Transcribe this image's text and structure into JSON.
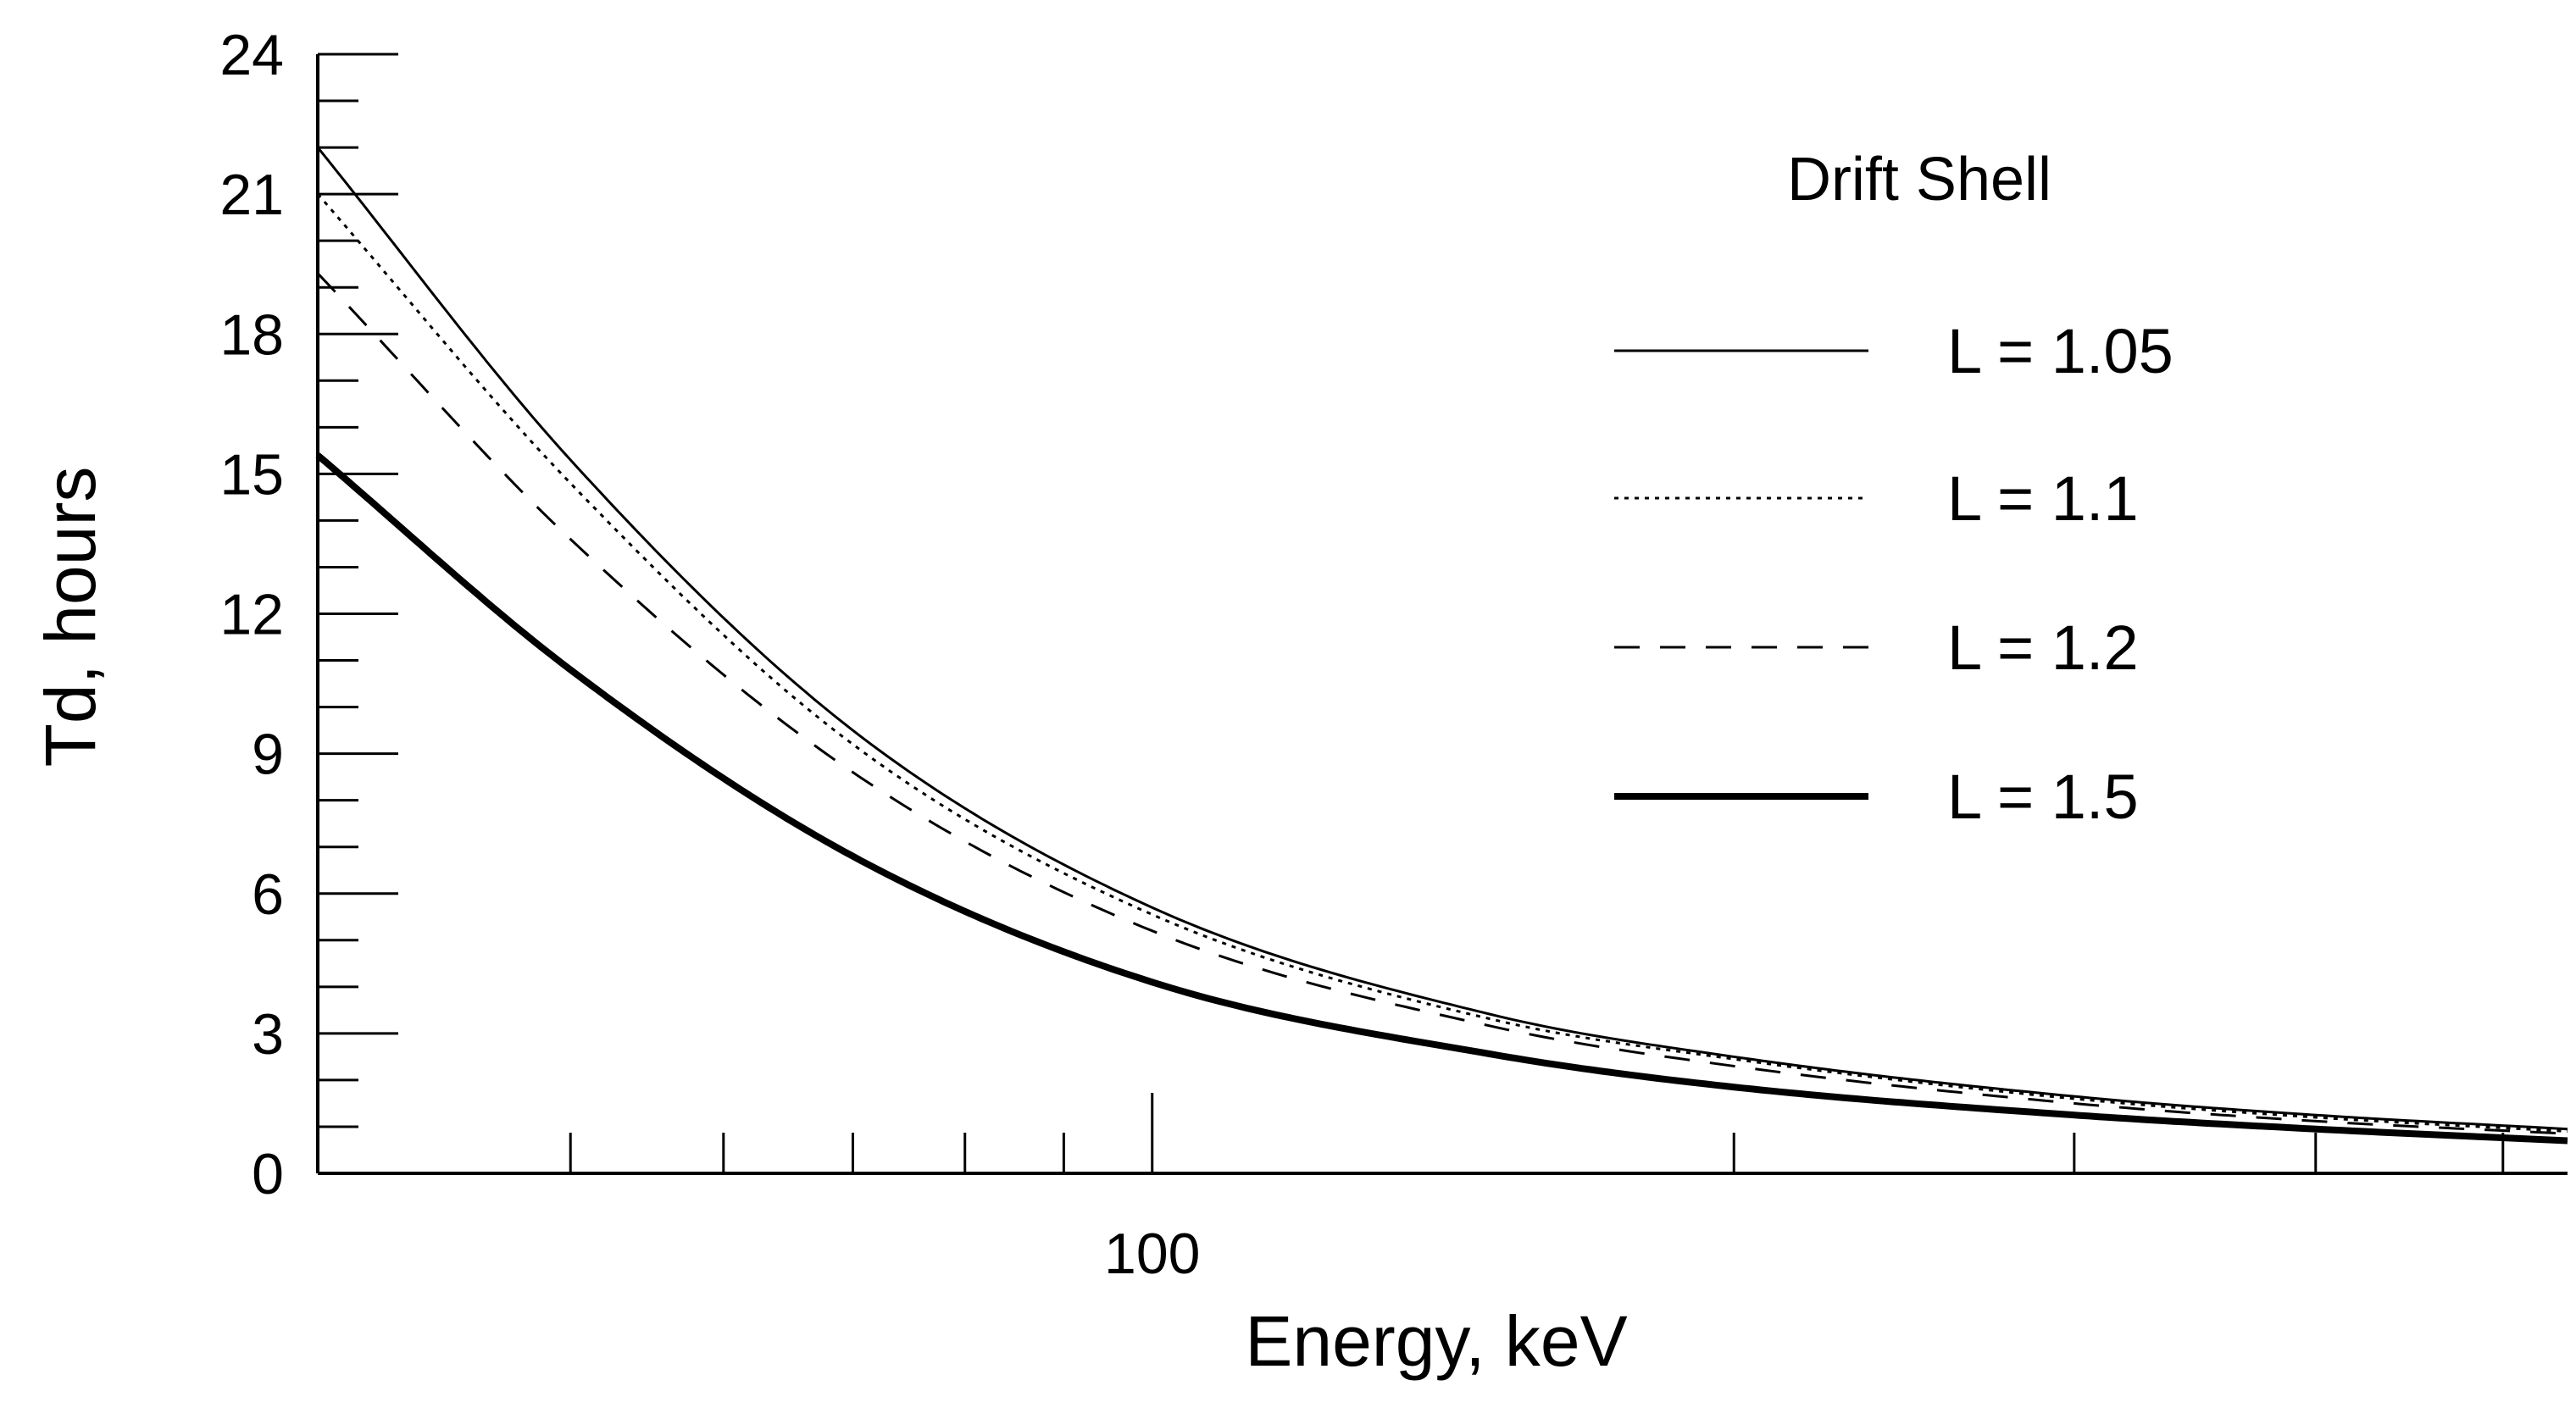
{
  "chart_data": {
    "type": "line",
    "title": "",
    "xlabel": "Energy, keV",
    "ylabel": "Td, hours",
    "x_scale": "log",
    "xlim": [
      37,
      540
    ],
    "ylim": [
      0,
      24
    ],
    "grid": false,
    "x_major_ticks": [
      100
    ],
    "x_minor_ticks": [
      50,
      60,
      70,
      80,
      90,
      200,
      300,
      400,
      500
    ],
    "x_tick_labels": [
      "100"
    ],
    "y_ticks": [
      0,
      3,
      6,
      9,
      12,
      15,
      18,
      21,
      24
    ],
    "y_tick_labels": [
      "0",
      "3",
      "6",
      "9",
      "12",
      "15",
      "18",
      "21",
      "24"
    ],
    "y_minor_step": 1,
    "legend": {
      "title": "Drift Shell",
      "placement": "top-right"
    },
    "series": [
      {
        "name": "L = 1.05",
        "style": "thin-solid",
        "x": [
          37,
          50,
          70,
          100,
          150,
          200,
          300,
          400,
          540
        ],
        "y": [
          22.0,
          15.3,
          9.5,
          5.7,
          3.4,
          2.5,
          1.65,
          1.25,
          0.95
        ]
      },
      {
        "name": "L = 1.1",
        "style": "dotted",
        "x": [
          37,
          50,
          70,
          100,
          150,
          200,
          300,
          400,
          540
        ],
        "y": [
          21.0,
          14.8,
          9.2,
          5.55,
          3.3,
          2.45,
          1.6,
          1.2,
          0.9
        ]
      },
      {
        "name": "L = 1.2",
        "style": "dashed",
        "x": [
          37,
          50,
          70,
          100,
          150,
          200,
          300,
          400,
          540
        ],
        "y": [
          19.3,
          13.6,
          8.6,
          5.2,
          3.15,
          2.3,
          1.5,
          1.12,
          0.85
        ]
      },
      {
        "name": "L = 1.5",
        "style": "thick-solid",
        "x": [
          37,
          50,
          70,
          100,
          150,
          200,
          300,
          400,
          540
        ],
        "y": [
          15.4,
          10.8,
          6.8,
          4.1,
          2.55,
          1.85,
          1.25,
          0.95,
          0.7
        ]
      }
    ]
  }
}
